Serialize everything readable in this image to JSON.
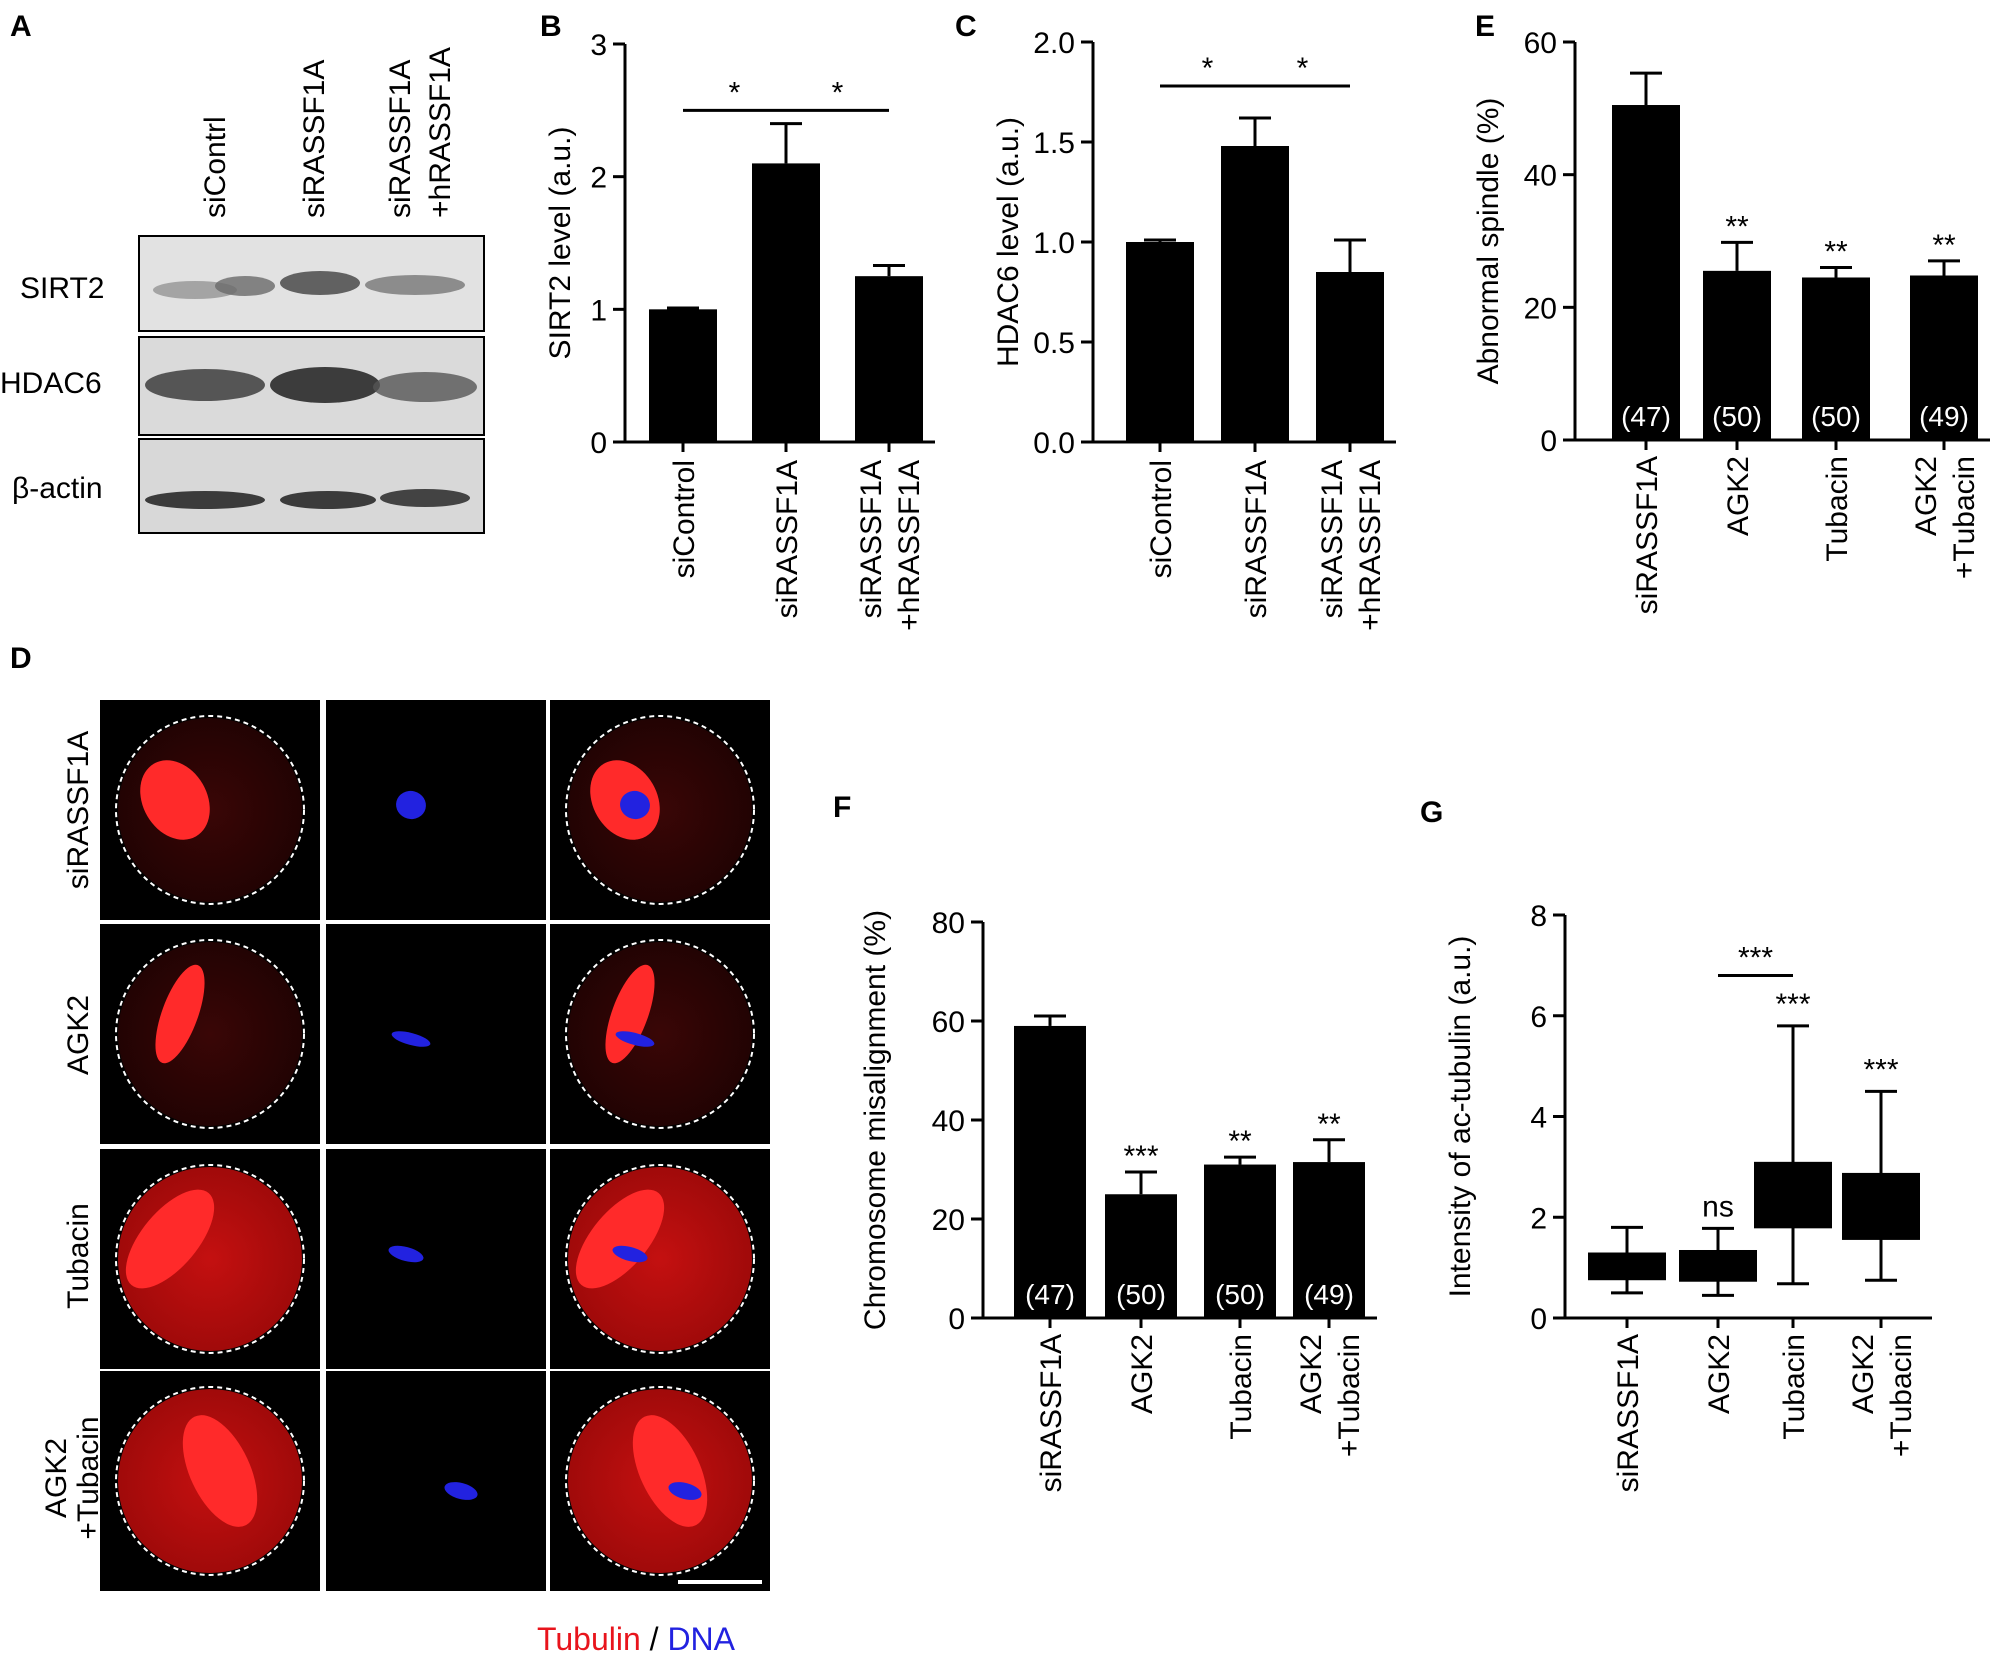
{
  "colors": {
    "bar": "#000000",
    "tubulin": "#e8141c",
    "dna": "#2222e0",
    "micro_bg": "#000000",
    "blot_bg": "#dcdcdc"
  },
  "panel_a": {
    "letter": "A",
    "lanes": [
      "siContrl",
      "siRASSF1A",
      "siRASSF1A",
      "+hRASSF1A"
    ],
    "rows": [
      "SIRT2",
      "HDAC6",
      "β-actin"
    ]
  },
  "panel_d": {
    "letter": "D",
    "rows": [
      "siRASSF1A",
      "AGK2",
      "Tubacin",
      "AGK2",
      "+Tubacin"
    ],
    "legend_tubulin": "Tubulin",
    "legend_sep": " / ",
    "legend_dna": "DNA"
  },
  "chart_data": [
    {
      "id": "B",
      "type": "bar",
      "letter": "B",
      "ylabel": "SIRT2 level (a.u.)",
      "ylim": [
        0,
        3
      ],
      "ticks": [
        "0",
        "1",
        "2",
        "3"
      ],
      "categories": [
        "siControl",
        "siRASSF1A",
        "siRASSF1A +hRASSF1A"
      ],
      "cat_lines": [
        [
          "siControl"
        ],
        [
          "siRASSF1A"
        ],
        [
          "siRASSF1A",
          "+hRASSF1A"
        ]
      ],
      "values": [
        1.0,
        2.1,
        1.25
      ],
      "errors": [
        0.01,
        0.3,
        0.08
      ],
      "brackets": [
        {
          "from": 0,
          "to": 1,
          "y": 2.5,
          "label": "*"
        },
        {
          "from": 1,
          "to": 2,
          "y": 2.5,
          "label": "*"
        }
      ]
    },
    {
      "id": "C",
      "type": "bar",
      "letter": "C",
      "ylabel": "HDAC6 level (a.u.)",
      "ylim": [
        0,
        2.0
      ],
      "ticks": [
        "0.0",
        "0.5",
        "1.0",
        "1.5",
        "2.0"
      ],
      "categories": [
        "siControl",
        "siRASSF1A",
        "siRASSF1A +hRASSF1A"
      ],
      "cat_lines": [
        [
          "siControl"
        ],
        [
          "siRASSF1A"
        ],
        [
          "siRASSF1A",
          "+hRASSF1A"
        ]
      ],
      "values": [
        1.0,
        1.48,
        0.85
      ],
      "errors": [
        0.01,
        0.14,
        0.16
      ],
      "brackets": [
        {
          "from": 0,
          "to": 1,
          "y": 1.78,
          "label": "*"
        },
        {
          "from": 1,
          "to": 2,
          "y": 1.78,
          "label": "*"
        }
      ]
    },
    {
      "id": "E",
      "type": "bar",
      "letter": "E",
      "ylabel": "Abnormal spindle (%)",
      "ylim": [
        0,
        60
      ],
      "ticks": [
        "0",
        "20",
        "40",
        "60"
      ],
      "categories": [
        "siRASSF1A",
        "AGK2",
        "Tubacin",
        "AGK2 +Tubacin"
      ],
      "cat_lines": [
        [
          "siRASSF1A"
        ],
        [
          "AGK2"
        ],
        [
          "Tubacin"
        ],
        [
          "AGK2",
          "+Tubacin"
        ]
      ],
      "values": [
        50.5,
        25.5,
        24.5,
        24.8
      ],
      "errors": [
        4.8,
        4.3,
        1.5,
        2.2
      ],
      "counts": [
        "(47)",
        "(50)",
        "(50)",
        "(49)"
      ],
      "sig": [
        "",
        "**",
        "**",
        "**"
      ]
    },
    {
      "id": "F",
      "type": "bar",
      "letter": "F",
      "ylabel": "Chromosome misalignment (%)",
      "ylim": [
        0,
        80
      ],
      "ticks": [
        "0",
        "20",
        "40",
        "60",
        "80"
      ],
      "categories": [
        "siRASSF1A",
        "AGK2",
        "Tubacin",
        "AGK2 +Tubacin"
      ],
      "cat_lines": [
        [
          "siRASSF1A"
        ],
        [
          "AGK2"
        ],
        [
          "Tubacin"
        ],
        [
          "AGK2",
          "+Tubacin"
        ]
      ],
      "values": [
        59,
        25,
        31,
        31.5
      ],
      "errors": [
        2,
        4.5,
        1.5,
        4.5
      ],
      "counts": [
        "(47)",
        "(50)",
        "(50)",
        "(49)"
      ],
      "sig": [
        "",
        "***",
        "**",
        "**"
      ]
    },
    {
      "id": "G",
      "type": "box",
      "letter": "G",
      "ylabel": "Intensity of ac-tubulin (a.u.)",
      "ylim": [
        0,
        8
      ],
      "ticks": [
        "0",
        "2",
        "4",
        "6",
        "8"
      ],
      "categories": [
        "siRASSF1A",
        "AGK2",
        "Tubacin",
        "AGK2 +Tubacin"
      ],
      "cat_lines": [
        [
          "siRASSF1A"
        ],
        [
          "AGK2"
        ],
        [
          "Tubacin"
        ],
        [
          "AGK2",
          "+Tubacin"
        ]
      ],
      "boxes": [
        {
          "min": 0.5,
          "q1": 0.75,
          "median": 1.0,
          "q3": 1.3,
          "max": 1.8
        },
        {
          "min": 0.45,
          "q1": 0.72,
          "median": 1.0,
          "q3": 1.35,
          "max": 1.78
        },
        {
          "min": 0.68,
          "q1": 1.78,
          "median": 2.4,
          "q3": 3.1,
          "max": 5.8
        },
        {
          "min": 0.75,
          "q1": 1.55,
          "median": 2.1,
          "q3": 2.88,
          "max": 4.5
        }
      ],
      "sig": [
        "",
        "ns",
        "***",
        "***"
      ],
      "brackets": [
        {
          "from": 1,
          "to": 2,
          "y": 6.8,
          "label": "***"
        }
      ]
    }
  ]
}
